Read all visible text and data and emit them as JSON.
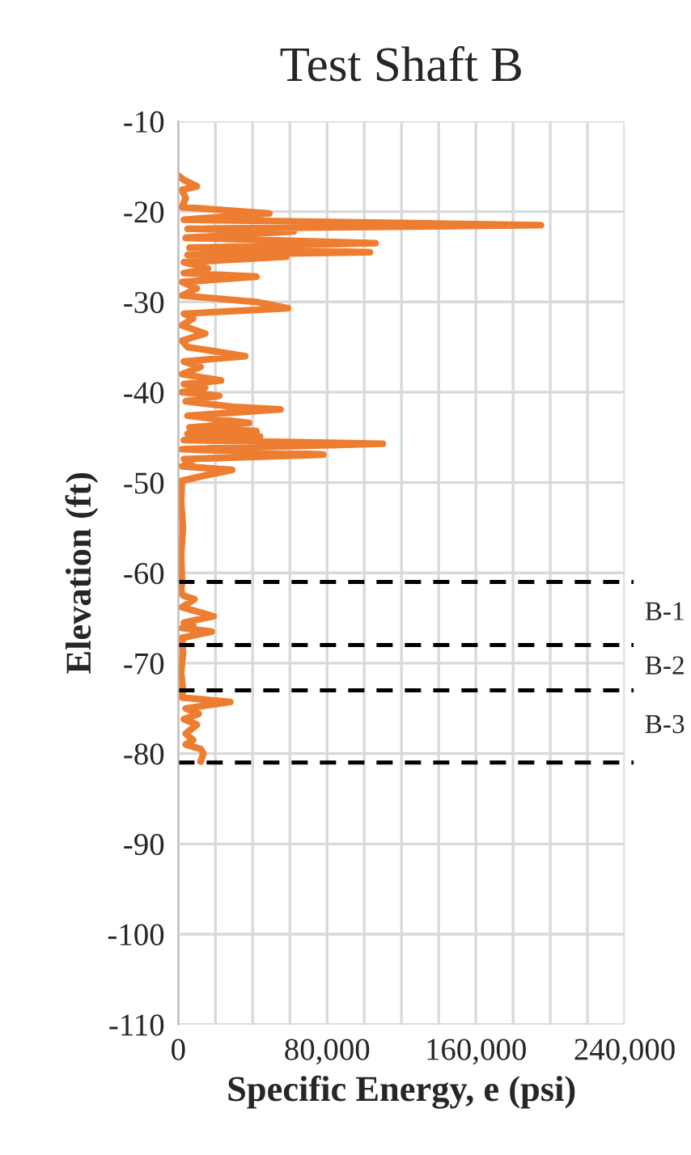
{
  "chart_data": {
    "type": "line",
    "title": "Test Shaft B",
    "xlabel": "Specific Energy, e (psi)",
    "ylabel": "Elevation (ft)",
    "series": [
      {
        "color": "#ed7d31",
        "x": [
          0,
          3000,
          10000,
          2000,
          4000,
          2000,
          49000,
          3000,
          195000,
          5000,
          62000,
          4000,
          106000,
          6000,
          103000,
          5000,
          58000,
          3000,
          16000,
          3000,
          42000,
          2000,
          10000,
          2000,
          42000,
          59000,
          3000,
          8000,
          2000,
          14500,
          2000,
          5000,
          36000,
          3000,
          12000,
          2000,
          23000,
          3000,
          14500,
          2000,
          22000,
          4000,
          29000,
          55000,
          5000,
          38000,
          6000,
          42000,
          5000,
          44000,
          3000,
          110000,
          2000,
          78000,
          3000,
          7000,
          2000,
          29000,
          17000,
          2000,
          1500,
          2500,
          1500,
          2000,
          1500,
          2500,
          8700,
          2000,
          19000,
          3000,
          8000,
          2000,
          18000,
          2000,
          2500,
          1500,
          2500,
          2000,
          28000,
          4000,
          11000,
          3000,
          10000,
          4000,
          8000,
          4000,
          12000,
          13500,
          12000
        ],
        "values": [
          -16.0,
          -16.5,
          -17.2,
          -17.6,
          -18.5,
          -19.5,
          -20.2,
          -20.9,
          -21.5,
          -21.9,
          -22.2,
          -22.9,
          -23.5,
          -24.0,
          -24.5,
          -24.8,
          -25.0,
          -25.6,
          -26.3,
          -26.8,
          -27.2,
          -27.8,
          -28.5,
          -29.3,
          -30.0,
          -30.7,
          -31.3,
          -31.8,
          -32.6,
          -33.5,
          -34.3,
          -35.0,
          -36.0,
          -36.6,
          -37.2,
          -38.0,
          -38.7,
          -39.1,
          -39.5,
          -40.0,
          -40.4,
          -41.0,
          -41.6,
          -41.9,
          -42.6,
          -43.4,
          -43.9,
          -44.3,
          -44.6,
          -44.9,
          -45.3,
          -45.7,
          -46.3,
          -46.9,
          -47.4,
          -47.8,
          -48.2,
          -48.6,
          -49.1,
          -49.8,
          -52.0,
          -55.0,
          -58.0,
          -61.0,
          -62.0,
          -62.5,
          -62.9,
          -63.8,
          -64.8,
          -65.5,
          -65.8,
          -66.1,
          -66.5,
          -67.2,
          -69.0,
          -71.0,
          -73.0,
          -73.8,
          -74.3,
          -75.0,
          -75.6,
          -76.2,
          -76.8,
          -77.8,
          -78.5,
          -79.0,
          -79.5,
          -80.0,
          -80.9
        ]
      }
    ],
    "xlim": [
      0,
      240000
    ],
    "xticks": [
      0,
      {
        "value": 20000,
        "label": null
      },
      {
        "value": 40000,
        "label": null
      },
      {
        "value": 60000,
        "label": null
      },
      {
        "value": 80000,
        "label": "80,000"
      },
      {
        "value": 100000,
        "label": null
      },
      {
        "value": 120000,
        "label": null
      },
      {
        "value": 140000,
        "label": null
      },
      {
        "value": 160000,
        "label": "160,000"
      },
      {
        "value": 180000,
        "label": null
      },
      {
        "value": 200000,
        "label": null
      },
      {
        "value": 220000,
        "label": null
      },
      {
        "value": 240000,
        "label": "240,000"
      }
    ],
    "ylim": [
      -110,
      -10
    ],
    "yticks": [
      -110,
      -100,
      -90,
      -80,
      -70,
      -60,
      -50,
      -40,
      -30,
      -20,
      -10
    ],
    "grid": true,
    "ref_lines": [
      {
        "axis": "y",
        "value": -61,
        "color": "#000000",
        "line_style": "dashed"
      },
      {
        "axis": "y",
        "value": -68,
        "color": "#000000",
        "line_style": "dashed"
      },
      {
        "axis": "y",
        "value": -73,
        "color": "#000000",
        "line_style": "dashed"
      },
      {
        "axis": "y",
        "value": -81,
        "color": "#000000",
        "line_style": "dashed"
      }
    ],
    "annotations": [
      "B-1",
      "B-2",
      "B-3"
    ]
  }
}
